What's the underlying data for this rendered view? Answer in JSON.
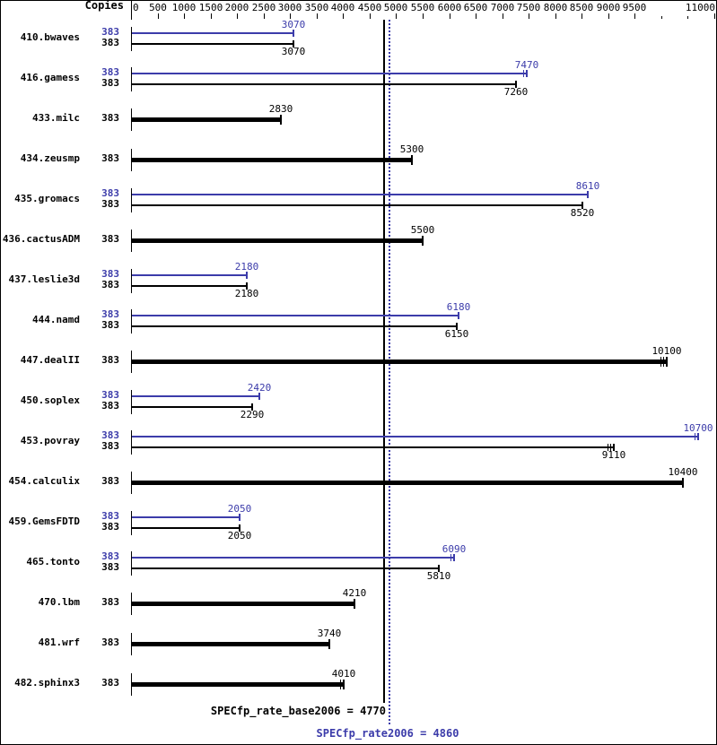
{
  "chart_data": {
    "type": "bar",
    "orientation": "horizontal",
    "copies_header": "Copies",
    "axis": {
      "min": 0,
      "max": 11000,
      "step": 500,
      "labeled_ticks": [
        0,
        500,
        1000,
        1500,
        2000,
        2500,
        3000,
        3500,
        4000,
        4500,
        5000,
        5500,
        6000,
        6500,
        7000,
        7500,
        8000,
        8500,
        9000,
        9500,
        11000
      ],
      "short_unlabeled_ticks": [
        10000,
        10500
      ]
    },
    "benchmarks": [
      {
        "name": "410.bwaves",
        "copies": 383,
        "peak": 3070,
        "base": 3070,
        "peak_marks": 1,
        "base_marks": 1
      },
      {
        "name": "416.gamess",
        "copies": 383,
        "peak": 7470,
        "base": 7260,
        "peak_marks": 2,
        "base_marks": 1
      },
      {
        "name": "433.milc",
        "copies": 383,
        "base": 2830,
        "base_marks": 1
      },
      {
        "name": "434.zeusmp",
        "copies": 383,
        "base": 5300,
        "base_marks": 1
      },
      {
        "name": "435.gromacs",
        "copies": 383,
        "peak": 8610,
        "base": 8520,
        "peak_marks": 1,
        "base_marks": 1
      },
      {
        "name": "436.cactusADM",
        "copies": 383,
        "base": 5500,
        "base_marks": 1
      },
      {
        "name": "437.leslie3d",
        "copies": 383,
        "peak": 2180,
        "base": 2180,
        "peak_marks": 1,
        "base_marks": 1
      },
      {
        "name": "444.namd",
        "copies": 383,
        "peak": 6180,
        "base": 6150,
        "peak_marks": 1,
        "base_marks": 1
      },
      {
        "name": "447.dealII",
        "copies": 383,
        "base": 10100,
        "base_marks": 3
      },
      {
        "name": "450.soplex",
        "copies": 383,
        "peak": 2420,
        "base": 2290,
        "peak_marks": 1,
        "base_marks": 1
      },
      {
        "name": "453.povray",
        "copies": 383,
        "peak": 10700,
        "base": 9110,
        "peak_marks": 2,
        "base_marks": 3
      },
      {
        "name": "454.calculix",
        "copies": 383,
        "base": 10400,
        "base_marks": 1
      },
      {
        "name": "459.GemsFDTD",
        "copies": 383,
        "peak": 2050,
        "base": 2050,
        "peak_marks": 1,
        "base_marks": 1
      },
      {
        "name": "465.tonto",
        "copies": 383,
        "peak": 6090,
        "base": 5810,
        "peak_marks": 2,
        "base_marks": 1
      },
      {
        "name": "470.lbm",
        "copies": 383,
        "base": 4210,
        "base_marks": 1
      },
      {
        "name": "481.wrf",
        "copies": 383,
        "base": 3740,
        "base_marks": 1
      },
      {
        "name": "482.sphinx3",
        "copies": 383,
        "base": 4010,
        "base_marks": 2
      }
    ],
    "summary": {
      "base_label": "SPECfp_rate_base2006 = 4770",
      "base_value": 4770,
      "peak_label": "SPECfp_rate2006 = 4860",
      "peak_value": 4860
    },
    "colors": {
      "peak": "#3c3caa",
      "base": "#000000"
    }
  }
}
